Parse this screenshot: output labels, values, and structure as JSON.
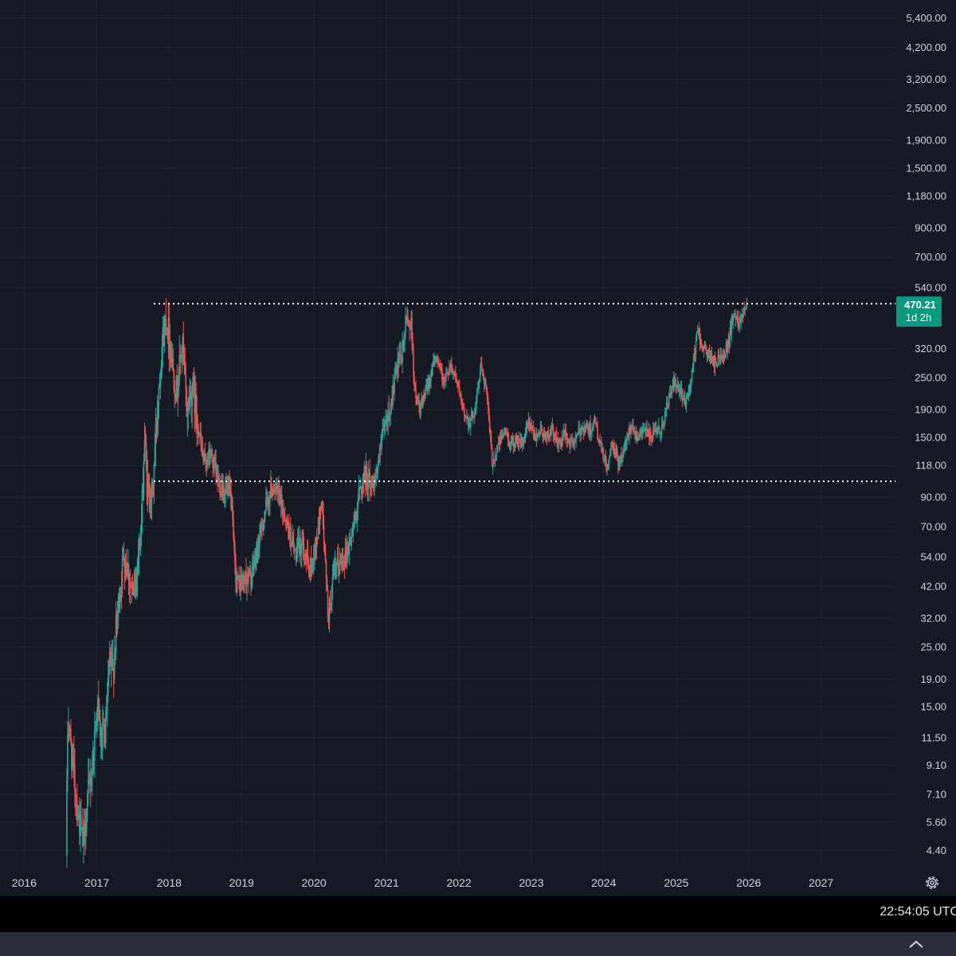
{
  "chart_data": {
    "type": "candlestick",
    "y_scale": "log",
    "grid": true,
    "x_ticks": [
      "2016",
      "2017",
      "2018",
      "2019",
      "2020",
      "2021",
      "2022",
      "2023",
      "2024",
      "2025",
      "2026",
      "2027"
    ],
    "y_ticks": [
      "5,400.00",
      "4,200.00",
      "3,200.00",
      "2,500.00",
      "1,900.00",
      "1,500.00",
      "1,180.00",
      "900.00",
      "700.00",
      "540.00",
      "320.00",
      "250.00",
      "190.00",
      "150.00",
      "118.00",
      "90.00",
      "70.00",
      "54.00",
      "42.00",
      "32.00",
      "25.00",
      "19.00",
      "15.00",
      "11.50",
      "9.10",
      "7.10",
      "5.60",
      "4.40"
    ],
    "ylim": [
      3.9,
      6300
    ],
    "xlim": [
      "2015-09-01",
      "2028-01-15"
    ],
    "resistance_level": 470,
    "support_level": 103,
    "last_price": {
      "value": "470.21",
      "countdown": "1d 2h"
    },
    "price_path": [
      [
        "2016-08-01",
        4.2
      ],
      [
        "2016-08-10",
        14
      ],
      [
        "2016-09-01",
        9.5
      ],
      [
        "2016-10-01",
        6.0
      ],
      [
        "2016-10-25",
        4.6
      ],
      [
        "2016-11-20",
        7.0
      ],
      [
        "2016-12-15",
        9.5
      ],
      [
        "2017-01-05",
        16
      ],
      [
        "2017-01-25",
        11
      ],
      [
        "2017-02-15",
        12
      ],
      [
        "2017-03-10",
        22
      ],
      [
        "2017-03-25",
        20
      ],
      [
        "2017-04-15",
        32
      ],
      [
        "2017-05-20",
        55
      ],
      [
        "2017-06-12",
        48
      ],
      [
        "2017-07-05",
        37
      ],
      [
        "2017-07-25",
        52
      ],
      [
        "2017-08-15",
        68
      ],
      [
        "2017-09-01",
        150
      ],
      [
        "2017-09-15",
        95
      ],
      [
        "2017-10-10",
        90
      ],
      [
        "2017-11-01",
        180
      ],
      [
        "2017-11-25",
        320
      ],
      [
        "2017-12-18",
        420
      ],
      [
        "2018-01-05",
        350
      ],
      [
        "2018-01-25",
        260
      ],
      [
        "2018-02-10",
        220
      ],
      [
        "2018-03-10",
        340
      ],
      [
        "2018-04-01",
        190
      ],
      [
        "2018-05-01",
        230
      ],
      [
        "2018-06-01",
        160
      ],
      [
        "2018-06-25",
        120
      ],
      [
        "2018-08-01",
        130
      ],
      [
        "2018-08-25",
        110
      ],
      [
        "2018-09-15",
        100
      ],
      [
        "2018-10-20",
        95
      ],
      [
        "2018-11-10",
        90
      ],
      [
        "2018-12-01",
        48
      ],
      [
        "2018-12-20",
        42
      ],
      [
        "2019-01-20",
        45
      ],
      [
        "2019-02-20",
        45
      ],
      [
        "2019-03-25",
        58
      ],
      [
        "2019-05-01",
        80
      ],
      [
        "2019-06-10",
        100
      ],
      [
        "2019-07-10",
        90
      ],
      [
        "2019-08-20",
        72
      ],
      [
        "2019-10-01",
        55
      ],
      [
        "2019-11-10",
        62
      ],
      [
        "2019-12-10",
        47
      ],
      [
        "2020-01-15",
        60
      ],
      [
        "2020-02-10",
        90
      ],
      [
        "2020-03-15",
        32
      ],
      [
        "2020-04-15",
        48
      ],
      [
        "2020-05-20",
        52
      ],
      [
        "2020-06-25",
        58
      ],
      [
        "2020-07-20",
        70
      ],
      [
        "2020-08-15",
        90
      ],
      [
        "2020-09-15",
        110
      ],
      [
        "2020-10-20",
        100
      ],
      [
        "2020-11-20",
        115
      ],
      [
        "2020-12-20",
        160
      ],
      [
        "2021-01-20",
        190
      ],
      [
        "2021-02-20",
        260
      ],
      [
        "2021-03-20",
        300
      ],
      [
        "2021-04-15",
        420
      ],
      [
        "2021-05-10",
        380
      ],
      [
        "2021-05-25",
        220
      ],
      [
        "2021-06-20",
        190
      ],
      [
        "2021-07-20",
        220
      ],
      [
        "2021-08-20",
        270
      ],
      [
        "2021-09-15",
        300
      ],
      [
        "2021-10-20",
        240
      ],
      [
        "2021-11-20",
        280
      ],
      [
        "2021-12-20",
        250
      ],
      [
        "2022-01-20",
        190
      ],
      [
        "2022-02-25",
        170
      ],
      [
        "2022-03-25",
        190
      ],
      [
        "2022-04-25",
        280
      ],
      [
        "2022-05-20",
        230
      ],
      [
        "2022-06-20",
        120
      ],
      [
        "2022-07-20",
        140
      ],
      [
        "2022-08-20",
        160
      ],
      [
        "2022-09-20",
        140
      ],
      [
        "2022-10-20",
        150
      ],
      [
        "2022-11-20",
        140
      ],
      [
        "2022-12-20",
        170
      ],
      [
        "2023-01-20",
        150
      ],
      [
        "2023-02-20",
        160
      ],
      [
        "2023-03-20",
        150
      ],
      [
        "2023-04-20",
        160
      ],
      [
        "2023-05-20",
        140
      ],
      [
        "2023-06-20",
        155
      ],
      [
        "2023-07-20",
        140
      ],
      [
        "2023-08-20",
        150
      ],
      [
        "2023-09-20",
        165
      ],
      [
        "2023-10-20",
        160
      ],
      [
        "2023-11-20",
        170
      ],
      [
        "2023-12-15",
        140
      ],
      [
        "2024-01-20",
        115
      ],
      [
        "2024-02-15",
        140
      ],
      [
        "2024-03-20",
        120
      ],
      [
        "2024-04-20",
        140
      ],
      [
        "2024-05-20",
        170
      ],
      [
        "2024-06-20",
        150
      ],
      [
        "2024-07-20",
        165
      ],
      [
        "2024-08-20",
        150
      ],
      [
        "2024-09-20",
        155
      ],
      [
        "2024-10-20",
        160
      ],
      [
        "2024-11-20",
        200
      ],
      [
        "2024-12-20",
        240
      ],
      [
        "2025-01-20",
        220
      ],
      [
        "2025-02-20",
        200
      ],
      [
        "2025-03-20",
        250
      ],
      [
        "2025-04-20",
        370
      ],
      [
        "2025-05-20",
        320
      ],
      [
        "2025-06-20",
        300
      ],
      [
        "2025-07-20",
        280
      ],
      [
        "2025-08-20",
        300
      ],
      [
        "2025-09-20",
        330
      ],
      [
        "2025-10-20",
        440
      ],
      [
        "2025-11-10",
        400
      ],
      [
        "2025-12-05",
        440
      ],
      [
        "2025-12-22",
        470
      ]
    ],
    "colors": {
      "up": "#26a69a",
      "down": "#ef5350",
      "price_label_bg": "#089981"
    }
  },
  "status": {
    "clock": "22:54:05 UTC"
  },
  "icons": {
    "settings": "gear-icon",
    "collapse": "chevron-up-icon"
  }
}
